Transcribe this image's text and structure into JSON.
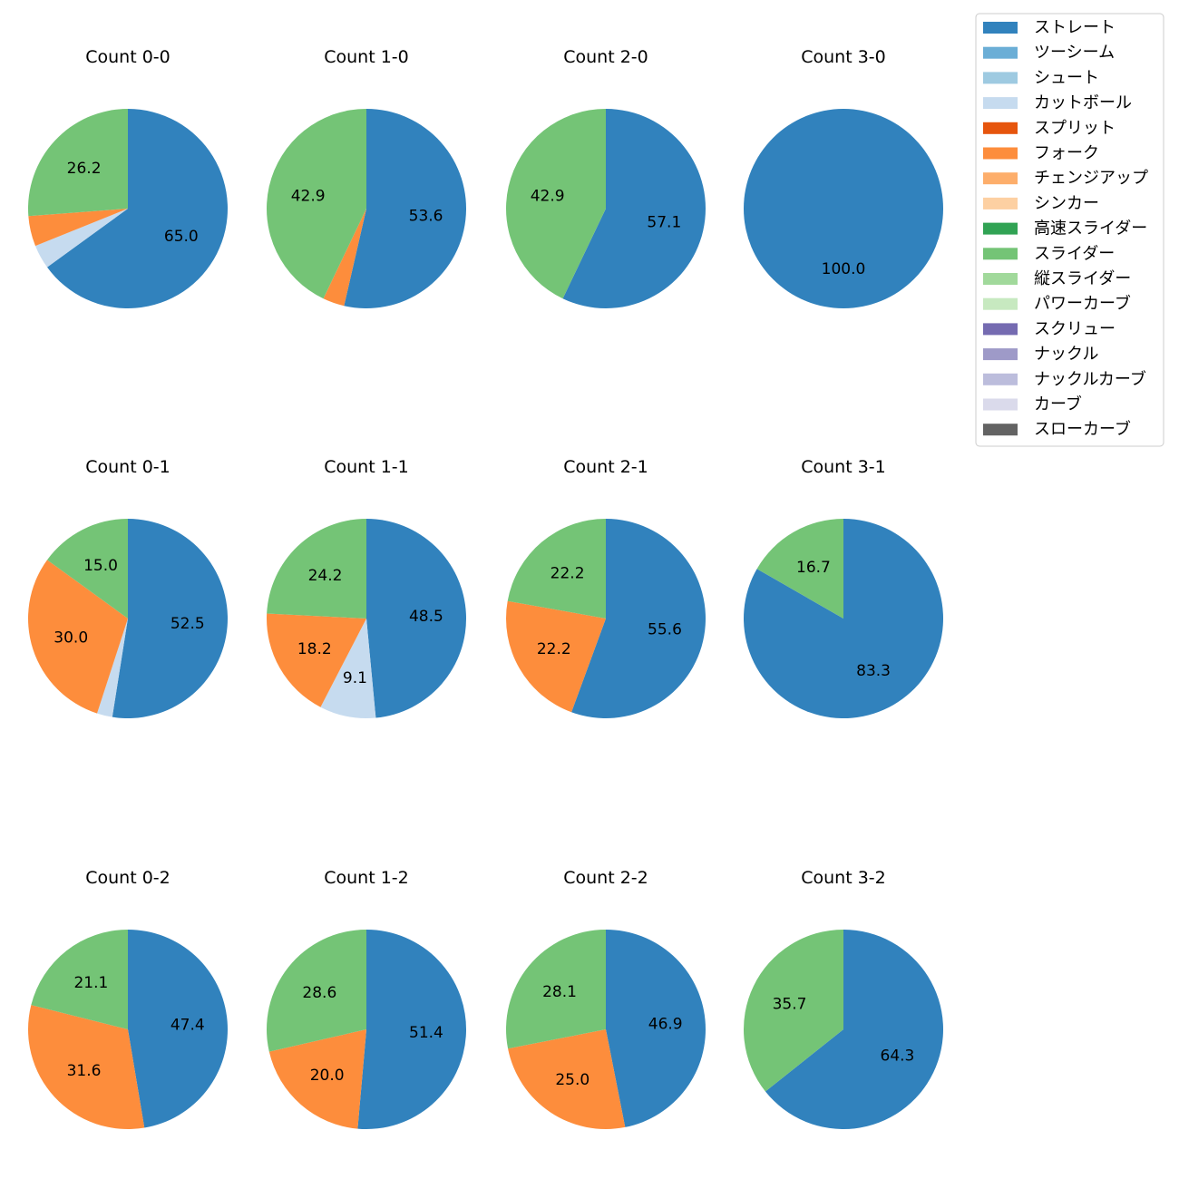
{
  "chart_data": {
    "type": "pie",
    "legend": {
      "placement": "top-right",
      "entries": [
        {
          "name": "ストレート",
          "color": "#3182bd"
        },
        {
          "name": "ツーシーム",
          "color": "#6baed6"
        },
        {
          "name": "シュート",
          "color": "#9ecae1"
        },
        {
          "name": "カットボール",
          "color": "#c6dbef"
        },
        {
          "name": "スプリット",
          "color": "#e6550d"
        },
        {
          "name": "フォーク",
          "color": "#fd8d3c"
        },
        {
          "name": "チェンジアップ",
          "color": "#fdae6b"
        },
        {
          "name": "シンカー",
          "color": "#fdd0a2"
        },
        {
          "name": "高速スライダー",
          "color": "#31a354"
        },
        {
          "name": "スライダー",
          "color": "#74c476"
        },
        {
          "name": "縦スライダー",
          "color": "#a1d99b"
        },
        {
          "name": "パワーカーブ",
          "color": "#c7e9c0"
        },
        {
          "name": "スクリュー",
          "color": "#756bb1"
        },
        {
          "name": "ナックル",
          "color": "#9e9ac8"
        },
        {
          "name": "ナックルカーブ",
          "color": "#bcbddc"
        },
        {
          "name": "カーブ",
          "color": "#dadaeb"
        },
        {
          "name": "スローカーブ",
          "color": "#636363"
        }
      ]
    },
    "charts": [
      {
        "title": "Count 0-0",
        "slices": [
          {
            "pitch": "ストレート",
            "value": 65.0,
            "label": "65.0"
          },
          {
            "pitch": "カットボール",
            "value": 3.9,
            "label": ""
          },
          {
            "pitch": "フォーク",
            "value": 4.9,
            "label": ""
          },
          {
            "pitch": "スライダー",
            "value": 26.2,
            "label": "26.2"
          }
        ]
      },
      {
        "title": "Count 1-0",
        "slices": [
          {
            "pitch": "ストレート",
            "value": 53.6,
            "label": "53.6"
          },
          {
            "pitch": "フォーク",
            "value": 3.5,
            "label": ""
          },
          {
            "pitch": "スライダー",
            "value": 42.9,
            "label": "42.9"
          }
        ]
      },
      {
        "title": "Count 2-0",
        "slices": [
          {
            "pitch": "ストレート",
            "value": 57.1,
            "label": "57.1"
          },
          {
            "pitch": "スライダー",
            "value": 42.9,
            "label": "42.9"
          }
        ]
      },
      {
        "title": "Count 3-0",
        "slices": [
          {
            "pitch": "ストレート",
            "value": 100.0,
            "label": "100.0"
          }
        ]
      },
      {
        "title": "Count 0-1",
        "slices": [
          {
            "pitch": "ストレート",
            "value": 52.5,
            "label": "52.5"
          },
          {
            "pitch": "カットボール",
            "value": 2.5,
            "label": ""
          },
          {
            "pitch": "フォーク",
            "value": 30.0,
            "label": "30.0"
          },
          {
            "pitch": "スライダー",
            "value": 15.0,
            "label": "15.0"
          }
        ]
      },
      {
        "title": "Count 1-1",
        "slices": [
          {
            "pitch": "ストレート",
            "value": 48.5,
            "label": "48.5"
          },
          {
            "pitch": "カットボール",
            "value": 9.1,
            "label": "9.1"
          },
          {
            "pitch": "フォーク",
            "value": 18.2,
            "label": "18.2"
          },
          {
            "pitch": "スライダー",
            "value": 24.2,
            "label": "24.2"
          }
        ]
      },
      {
        "title": "Count 2-1",
        "slices": [
          {
            "pitch": "ストレート",
            "value": 55.6,
            "label": "55.6"
          },
          {
            "pitch": "フォーク",
            "value": 22.2,
            "label": "22.2"
          },
          {
            "pitch": "スライダー",
            "value": 22.2,
            "label": "22.2"
          }
        ]
      },
      {
        "title": "Count 3-1",
        "slices": [
          {
            "pitch": "ストレート",
            "value": 83.3,
            "label": "83.3"
          },
          {
            "pitch": "スライダー",
            "value": 16.7,
            "label": "16.7"
          }
        ]
      },
      {
        "title": "Count 0-2",
        "slices": [
          {
            "pitch": "ストレート",
            "value": 47.4,
            "label": "47.4"
          },
          {
            "pitch": "フォーク",
            "value": 31.6,
            "label": "31.6"
          },
          {
            "pitch": "スライダー",
            "value": 21.1,
            "label": "21.1"
          }
        ]
      },
      {
        "title": "Count 1-2",
        "slices": [
          {
            "pitch": "ストレート",
            "value": 51.4,
            "label": "51.4"
          },
          {
            "pitch": "フォーク",
            "value": 20.0,
            "label": "20.0"
          },
          {
            "pitch": "スライダー",
            "value": 28.6,
            "label": "28.6"
          }
        ]
      },
      {
        "title": "Count 2-2",
        "slices": [
          {
            "pitch": "ストレート",
            "value": 46.9,
            "label": "46.9"
          },
          {
            "pitch": "フォーク",
            "value": 25.0,
            "label": "25.0"
          },
          {
            "pitch": "スライダー",
            "value": 28.1,
            "label": "28.1"
          }
        ]
      },
      {
        "title": "Count 3-2",
        "slices": [
          {
            "pitch": "ストレート",
            "value": 64.3,
            "label": "64.3"
          },
          {
            "pitch": "スライダー",
            "value": 35.7,
            "label": "35.7"
          }
        ]
      }
    ]
  }
}
